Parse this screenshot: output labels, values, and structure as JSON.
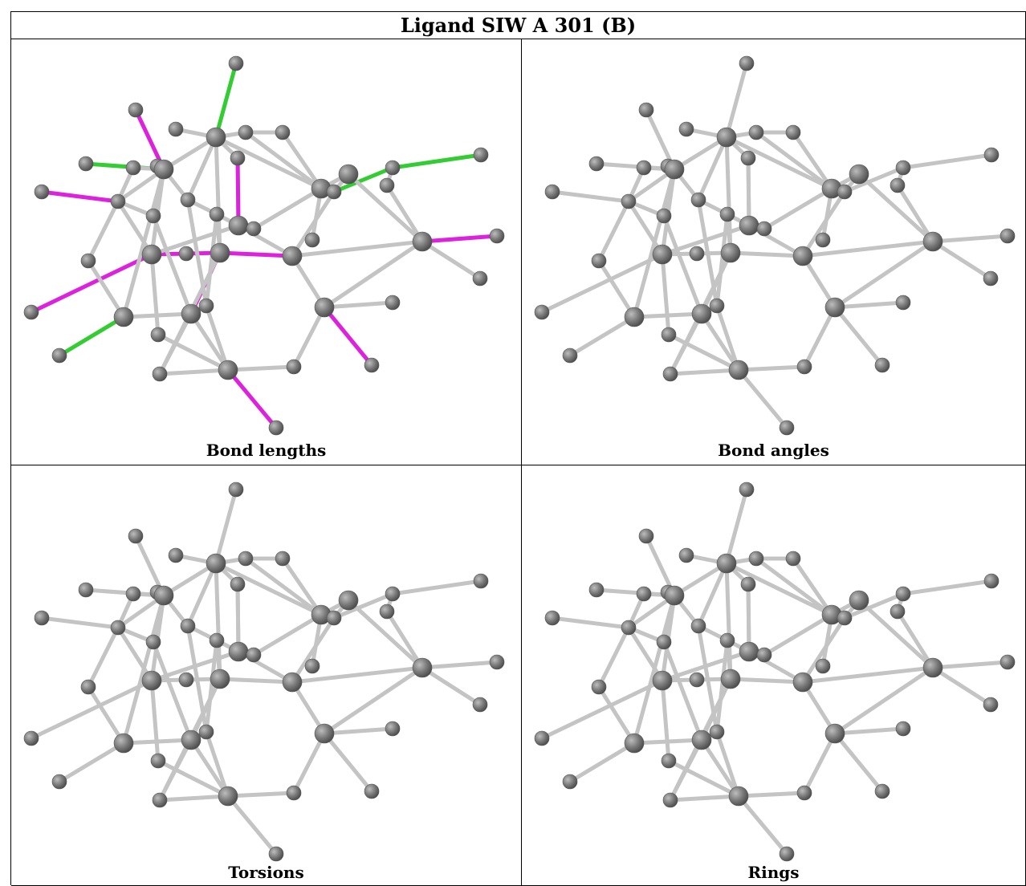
{
  "title": "Ligand SIW A 301 (B)",
  "panels": [
    {
      "caption": "Bond lengths",
      "highlight": true
    },
    {
      "caption": "Bond angles",
      "highlight": false
    },
    {
      "caption": "Torsions",
      "highlight": false
    },
    {
      "caption": "Rings",
      "highlight": false
    }
  ],
  "colors": {
    "atom": "#7a7a7a",
    "bond": "#c4c4c4",
    "bond_outlier_green": "#33cc33",
    "bond_outlier_magenta": "#dd22dd"
  }
}
